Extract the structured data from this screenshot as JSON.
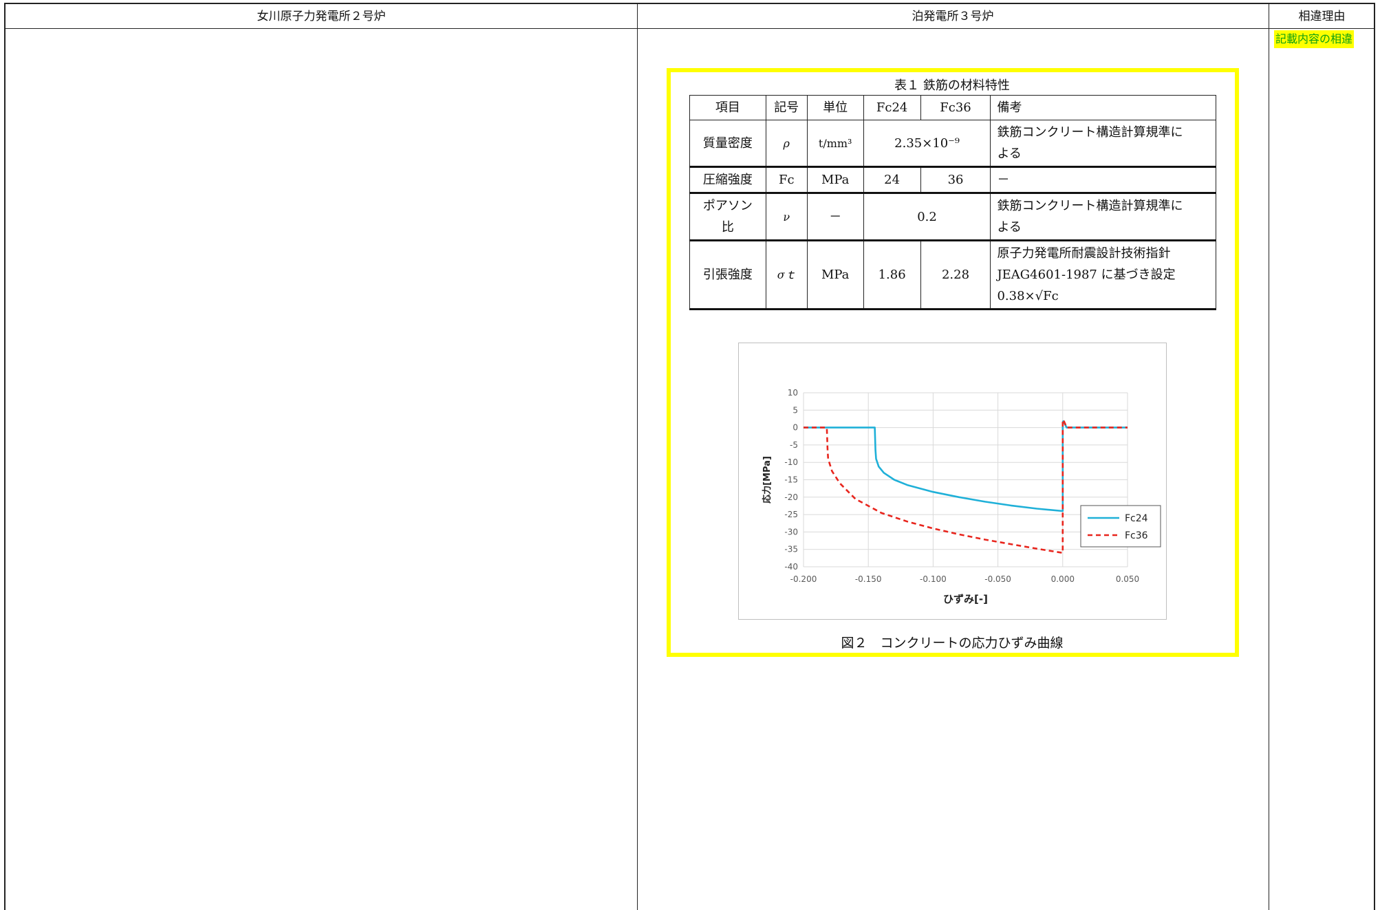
{
  "header": {
    "col_left": "女川原子力発電所２号炉",
    "col_mid": "泊発電所３号炉",
    "col_right": "相違理由"
  },
  "reason_tag": "記載内容の相違",
  "table": {
    "title": "表１ 鉄筋の材料特性",
    "headers": [
      "項目",
      "記号",
      "単位",
      "Fc24",
      "Fc36",
      "備考"
    ],
    "rows": {
      "density": {
        "item": "質量密度",
        "symbol": "ρ",
        "unit": "t/mm³",
        "value": "2.35×10⁻⁹",
        "note1": "鉄筋コンクリート構造計算規準に",
        "note2": "よる"
      },
      "compressive": {
        "item": "圧縮強度",
        "symbol": "Fc",
        "unit": "MPa",
        "fc24": "24",
        "fc36": "36",
        "note": "－"
      },
      "poisson": {
        "item1": "ポアソン",
        "item2": "比",
        "symbol": "ν",
        "unit": "－",
        "value": "0.2",
        "note1": "鉄筋コンクリート構造計算規準に",
        "note2": "よる"
      },
      "tensile": {
        "item": "引張強度",
        "symbol": "σｔ",
        "unit": "MPa",
        "fc24": "1.86",
        "fc36": "2.28",
        "note1": "原子力発電所耐震設計技術指針",
        "note2": "JEAG4601-1987 に基づき設定",
        "note3": "0.38×√Fc"
      }
    }
  },
  "figure_caption": "図２　コンクリートの応力ひずみ曲線",
  "chart_data": {
    "type": "line",
    "title": "",
    "xlabel": "ひずみ[-]",
    "ylabel": "応力[MPa]",
    "xlim": [
      -0.2,
      0.05
    ],
    "ylim": [
      -40,
      10
    ],
    "xticks": [
      -0.2,
      -0.15,
      -0.1,
      -0.05,
      0.0,
      0.05
    ],
    "xtick_labels": [
      "-0.200",
      "-0.150",
      "-0.100",
      "-0.050",
      "0.000",
      "0.050"
    ],
    "yticks": [
      10,
      5,
      0,
      -5,
      -10,
      -15,
      -20,
      -25,
      -30,
      -35,
      -40
    ],
    "grid": true,
    "legend_position": "lower-right",
    "series": [
      {
        "name": "Fc24",
        "color": "#1fb0d8",
        "style": "solid",
        "x": [
          -0.2,
          -0.145,
          -0.1445,
          -0.144,
          -0.142,
          -0.138,
          -0.13,
          -0.12,
          -0.1,
          -0.08,
          -0.06,
          -0.04,
          -0.02,
          0.0,
          0.0,
          0.0005,
          0.003,
          0.05
        ],
        "y": [
          0,
          0,
          -6.5,
          -9,
          -11.2,
          -13,
          -15,
          -16.5,
          -18.5,
          -20,
          -21.3,
          -22.4,
          -23.3,
          -24,
          1.5,
          1.86,
          0,
          0
        ]
      },
      {
        "name": "Fc36",
        "color": "#e8251d",
        "style": "dashed",
        "x": [
          -0.2,
          -0.182,
          -0.1815,
          -0.181,
          -0.178,
          -0.172,
          -0.16,
          -0.14,
          -0.12,
          -0.1,
          -0.08,
          -0.06,
          -0.04,
          -0.02,
          0.0,
          0.0,
          0.0005,
          0.003,
          0.05
        ],
        "y": [
          0,
          0,
          -6,
          -9,
          -12.5,
          -16,
          -20.5,
          -24.5,
          -27,
          -29,
          -30.7,
          -32.2,
          -33.5,
          -34.8,
          -36,
          1.5,
          2.28,
          0,
          0
        ]
      }
    ]
  }
}
